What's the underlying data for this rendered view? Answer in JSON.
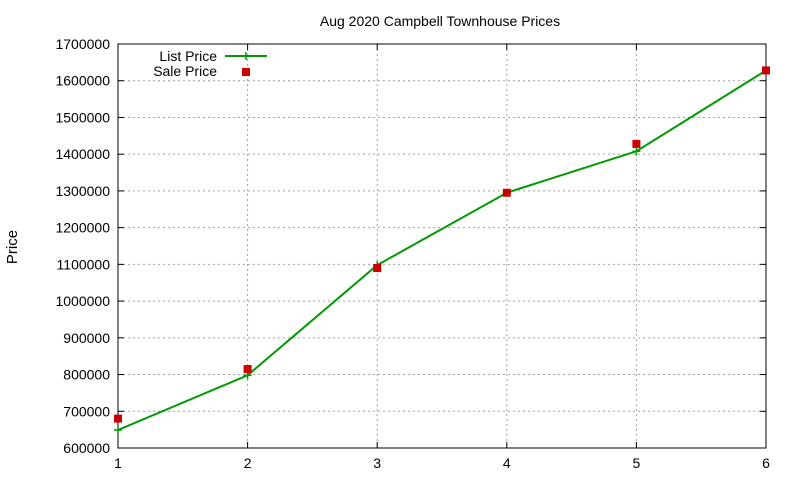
{
  "chart_data": {
    "type": "line",
    "title": "Aug 2020 Campbell Townhouse Prices",
    "xlabel": "",
    "ylabel": "Price",
    "x": [
      1,
      2,
      3,
      4,
      5,
      6
    ],
    "xlim": [
      1,
      6
    ],
    "ylim": [
      600000,
      1700000
    ],
    "x_ticks": [
      "1",
      "2",
      "3",
      "4",
      "5",
      "6"
    ],
    "y_ticks": [
      "600000",
      "700000",
      "800000",
      "900000",
      "1000000",
      "1100000",
      "1200000",
      "1300000",
      "1400000",
      "1500000",
      "1600000",
      "1700000"
    ],
    "grid": true,
    "legend_position": "top-left",
    "series": [
      {
        "name": "List Price",
        "style": "line-with-plus-markers",
        "color": "#009900",
        "values": [
          649000,
          798000,
          1098000,
          1295000,
          1408000,
          1628000
        ]
      },
      {
        "name": "Sale Price",
        "style": "square-markers",
        "color": "#cc0000",
        "values": [
          680000,
          815000,
          1090000,
          1295000,
          1428000,
          1628000
        ]
      }
    ]
  }
}
